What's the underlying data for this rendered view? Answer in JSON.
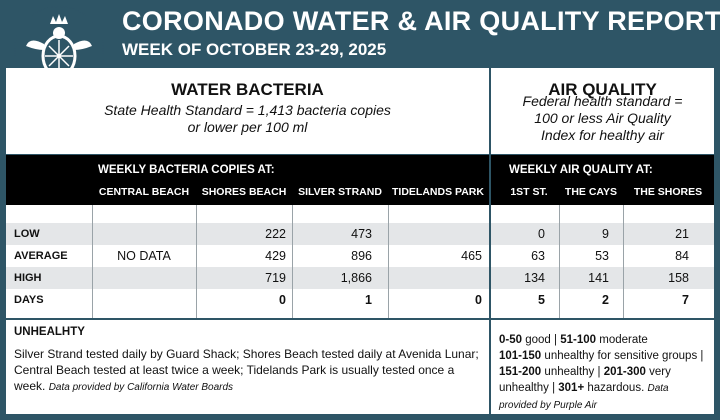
{
  "header": {
    "title": "CORONADO WATER & AIR QUALITY REPORT",
    "subtitle": "WEEK OF OCTOBER 23-29, 2025",
    "logo_icon": "turtle-crown-logo-icon"
  },
  "water": {
    "title": "WATER BACTERIA",
    "standard_line1": "State Health Standard  = 1,413 bacteria copies",
    "standard_line2": "or lower per 100 ml",
    "band_title": "WEEKLY BACTERIA COPIES AT:",
    "columns": [
      "CENTRAL BEACH",
      "SHORES BEACH",
      "SILVER STRAND",
      "TIDELANDS PARK"
    ],
    "rows": {
      "low": [
        "",
        "222",
        "473",
        ""
      ],
      "average": [
        "NO DATA",
        "429",
        "896",
        "465"
      ],
      "high": [
        "",
        "719",
        "1,866",
        ""
      ],
      "days": [
        "",
        "0",
        "1",
        "0"
      ]
    }
  },
  "air": {
    "title": "AIR QUALITY",
    "standard_line1": "Federal health standard =",
    "standard_line2": "100 or less Air Quality",
    "standard_line3": "Index for healthy air",
    "band_title": "WEEKLY AIR QUALITY AT:",
    "columns": [
      "1ST ST.",
      "THE CAYS",
      "THE SHORES"
    ],
    "rows": {
      "low": [
        "0",
        "9",
        "21"
      ],
      "average": [
        "63",
        "53",
        "84"
      ],
      "high": [
        "134",
        "141",
        "158"
      ],
      "days": [
        "5",
        "2",
        "7"
      ]
    }
  },
  "row_labels": {
    "low": "LOW",
    "average": "AVERAGE",
    "high": "HIGH",
    "days": "DAYS"
  },
  "footer": {
    "water_title": "UNHEALHTY",
    "water_text": "Silver Strand tested daily by Guard Shack; Shores Beach tested daily at Avenida Lunar; Central Beach tested at least twice a week; Tidelands Park is usually tested once a week.",
    "water_credit": "Data provided by California Water Boards",
    "air_scale": [
      {
        "range": "0-50",
        "label": "good"
      },
      {
        "range": "51-100",
        "label": "moderate"
      },
      {
        "range": "101-150",
        "label": "unhealthy for sensitive groups"
      },
      {
        "range": "151-200",
        "label": "unhealthy"
      },
      {
        "range": "201-300",
        "label": "very unhealthy"
      },
      {
        "range": "301+",
        "label": "hazardous."
      }
    ],
    "air_credit": "Data provided by Purple Air"
  },
  "colors": {
    "frame": "#2e5566",
    "band": "#000000",
    "shade": "#e4e6e8"
  }
}
